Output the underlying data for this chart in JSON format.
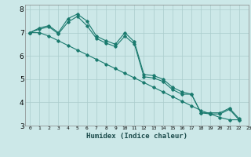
{
  "xlabel": "Humidex (Indice chaleur)",
  "bg_color": "#cce8e8",
  "grid_color": "#aacccc",
  "line_color": "#1a7a6e",
  "xlim": [
    -0.5,
    23
  ],
  "ylim": [
    3,
    8.2
  ],
  "yticks": [
    3,
    4,
    5,
    6,
    7,
    8
  ],
  "xticks": [
    0,
    1,
    2,
    3,
    4,
    5,
    6,
    7,
    8,
    9,
    10,
    11,
    12,
    13,
    14,
    15,
    16,
    17,
    18,
    19,
    20,
    21,
    22,
    23
  ],
  "series1_x": [
    0,
    1,
    2,
    3,
    4,
    5,
    6,
    7,
    8,
    9,
    10,
    11,
    12,
    13,
    14,
    15,
    16,
    17,
    18,
    19,
    20,
    21,
    22
  ],
  "series1_y": [
    7.0,
    7.2,
    7.3,
    7.0,
    7.6,
    7.8,
    7.5,
    6.85,
    6.65,
    6.5,
    7.0,
    6.6,
    5.2,
    5.15,
    5.0,
    4.65,
    4.45,
    4.35,
    3.55,
    3.55,
    3.55,
    3.75,
    3.3
  ],
  "series2_x": [
    0,
    1,
    2,
    3,
    4,
    5,
    6,
    7,
    8,
    9,
    10,
    11,
    12,
    13,
    14,
    15,
    16,
    17,
    18,
    19,
    20,
    21,
    22
  ],
  "series2_y": [
    7.0,
    7.15,
    7.25,
    6.95,
    7.45,
    7.7,
    7.3,
    6.75,
    6.55,
    6.4,
    6.85,
    6.5,
    5.1,
    5.05,
    4.9,
    4.55,
    4.35,
    4.35,
    3.55,
    3.5,
    3.5,
    3.7,
    3.25
  ],
  "series3_x": [
    0,
    1,
    2,
    3,
    4,
    5,
    6,
    7,
    8,
    9,
    10,
    11,
    12,
    13,
    14,
    15,
    16,
    17,
    18,
    19,
    20,
    21,
    22
  ],
  "series3_y": [
    7.0,
    7.0,
    6.85,
    6.65,
    6.45,
    6.25,
    6.05,
    5.85,
    5.65,
    5.45,
    5.25,
    5.05,
    4.85,
    4.65,
    4.45,
    4.25,
    4.05,
    3.85,
    3.65,
    3.5,
    3.35,
    3.25,
    3.25
  ]
}
